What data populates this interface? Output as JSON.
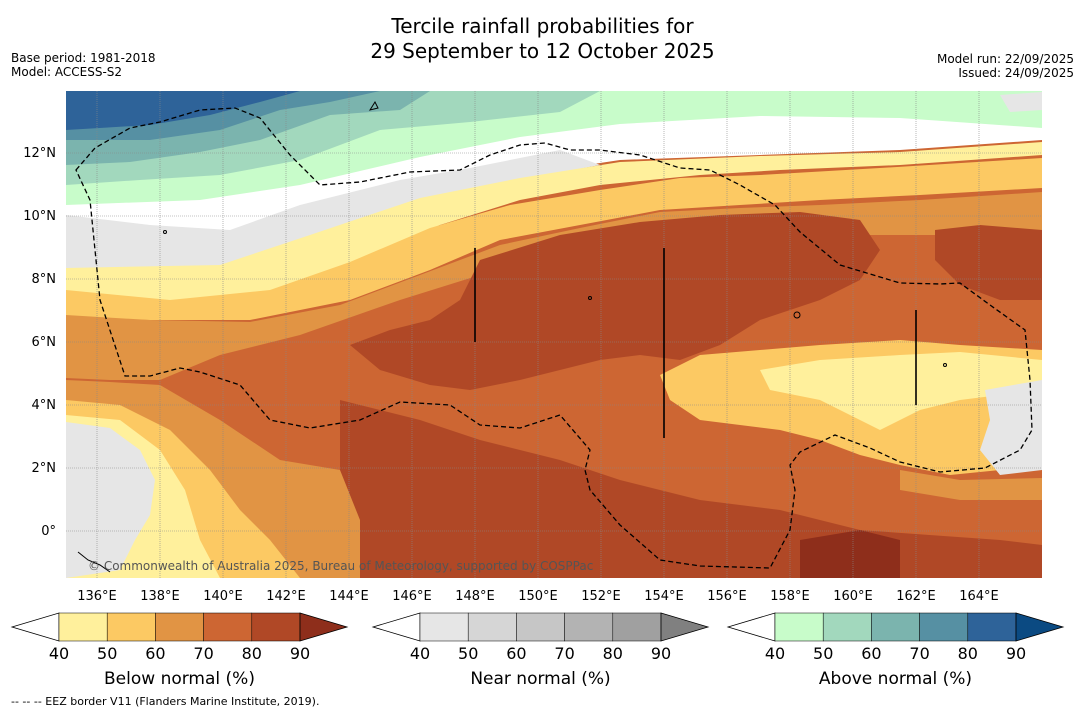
{
  "title": {
    "line1": "Tercile rainfall probabilities for",
    "line2": "29 September to 12 October 2025"
  },
  "meta": {
    "base_period": "Base period: 1981-2018",
    "model": "Model: ACCESS-S2",
    "model_run": "Model run: 22/09/2025",
    "issued": "Issued: 24/09/2025"
  },
  "map": {
    "lon_labels": [
      "136°E",
      "138°E",
      "140°E",
      "142°E",
      "144°E",
      "146°E",
      "148°E",
      "150°E",
      "152°E",
      "154°E",
      "156°E",
      "158°E",
      "160°E",
      "162°E",
      "164°E"
    ],
    "lat_labels": [
      "12°N",
      "10°N",
      "8°N",
      "6°N",
      "4°N",
      "2°N",
      "0°"
    ],
    "copyright": "© Commonwealth of Australia 2025, Bureau of Meteorology, supported by COSPPac"
  },
  "legends": [
    {
      "title": "Below normal (%)",
      "ticks": [
        "40",
        "50",
        "60",
        "70",
        "80",
        "90"
      ],
      "colors": [
        "#fff09c",
        "#fcc963",
        "#e19444",
        "#cd6633",
        "#b04826",
        "#8e2e1b"
      ]
    },
    {
      "title": "Near normal (%)",
      "ticks": [
        "40",
        "50",
        "60",
        "70",
        "80",
        "90"
      ],
      "colors": [
        "#e6e6e6",
        "#d6d6d6",
        "#c6c6c6",
        "#b3b3b3",
        "#a0a0a0",
        "#808080"
      ]
    },
    {
      "title": "Above normal (%)",
      "ticks": [
        "40",
        "50",
        "60",
        "70",
        "80",
        "90"
      ],
      "colors": [
        "#c8fcca",
        "#a2d8bd",
        "#7bb4ae",
        "#5690a3",
        "#2e6399",
        "#0b4a82"
      ]
    }
  ],
  "footnote": "--  --  -- EEZ border V11 (Flanders Marine Institute, 2019)."
}
